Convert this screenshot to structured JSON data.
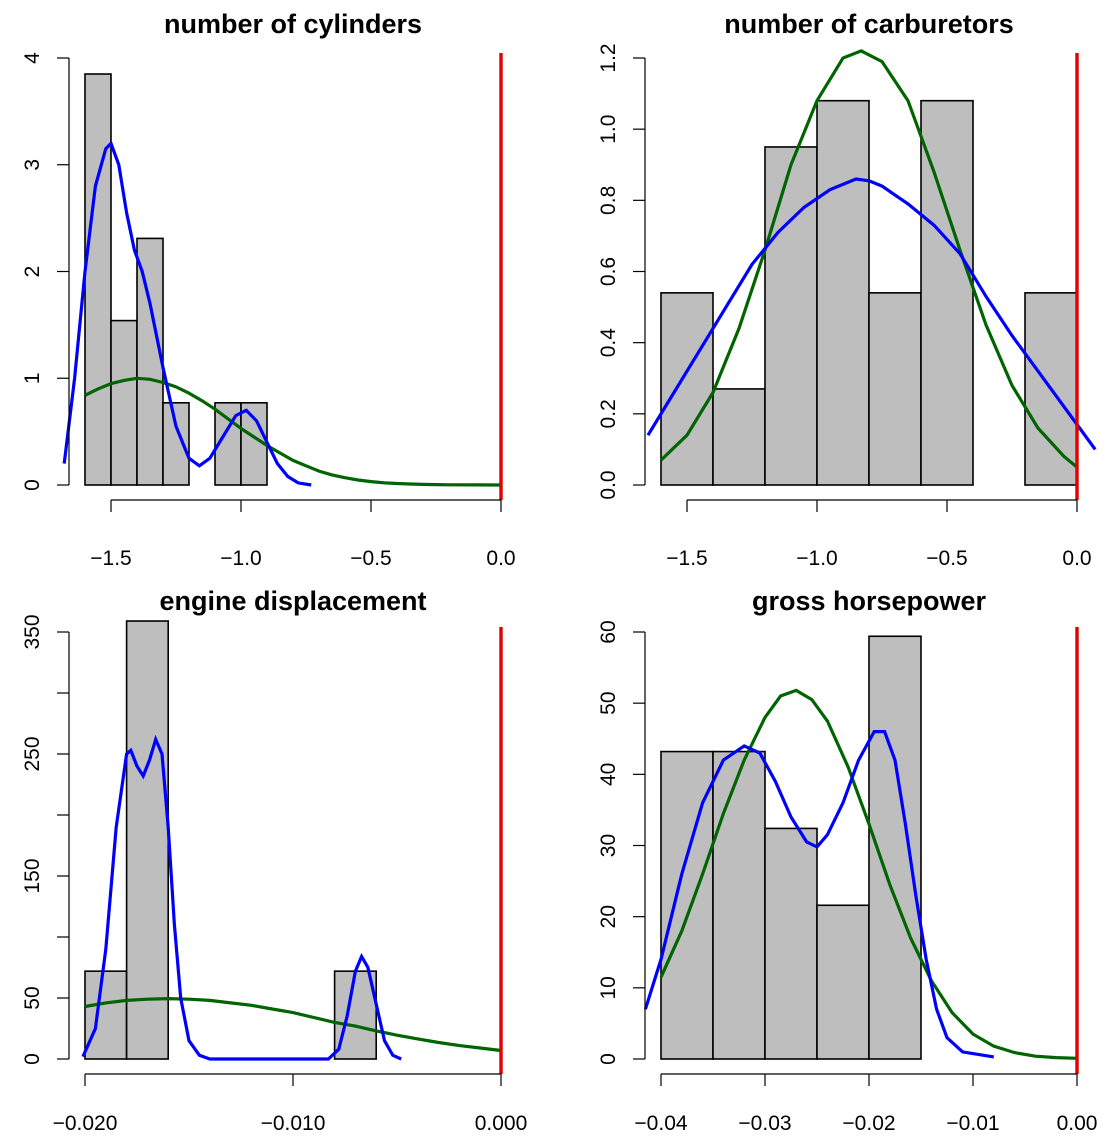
{
  "colors": {
    "bars": "#bebebe",
    "kde": "#0000ff",
    "normal": "#006400",
    "vline": "#e00000"
  },
  "chart_data": [
    {
      "type": "bar",
      "title": "number of cylinders",
      "xlim": [
        -1.6,
        0.0
      ],
      "ylim": [
        0,
        4
      ],
      "xticks": [
        -1.5,
        -1.0,
        -0.5,
        0.0
      ],
      "xtick_labels": [
        "−1.5",
        "−1.0",
        "−0.5",
        "0.0"
      ],
      "yticks": [
        0,
        1,
        2,
        3,
        4
      ],
      "ytick_labels": [
        "0",
        "1",
        "2",
        "3",
        "4"
      ],
      "bins": [
        {
          "x0": -1.6,
          "x1": -1.5,
          "value": 3.85
        },
        {
          "x0": -1.5,
          "x1": -1.4,
          "value": 1.54
        },
        {
          "x0": -1.4,
          "x1": -1.3,
          "value": 2.31
        },
        {
          "x0": -1.3,
          "x1": -1.2,
          "value": 0.77
        },
        {
          "x0": -1.2,
          "x1": -1.1,
          "value": 0
        },
        {
          "x0": -1.1,
          "x1": -1.0,
          "value": 0.77
        },
        {
          "x0": -1.0,
          "x1": -0.9,
          "value": 0.77
        }
      ],
      "kde": [
        [
          -1.68,
          0.2
        ],
        [
          -1.64,
          1.0
        ],
        [
          -1.6,
          2.0
        ],
        [
          -1.56,
          2.8
        ],
        [
          -1.52,
          3.15
        ],
        [
          -1.5,
          3.2
        ],
        [
          -1.47,
          3.0
        ],
        [
          -1.44,
          2.55
        ],
        [
          -1.41,
          2.2
        ],
        [
          -1.38,
          2.0
        ],
        [
          -1.35,
          1.7
        ],
        [
          -1.3,
          1.1
        ],
        [
          -1.25,
          0.55
        ],
        [
          -1.2,
          0.25
        ],
        [
          -1.16,
          0.18
        ],
        [
          -1.12,
          0.25
        ],
        [
          -1.07,
          0.45
        ],
        [
          -1.02,
          0.65
        ],
        [
          -0.98,
          0.7
        ],
        [
          -0.94,
          0.6
        ],
        [
          -0.9,
          0.4
        ],
        [
          -0.86,
          0.2
        ],
        [
          -0.82,
          0.08
        ],
        [
          -0.78,
          0.02
        ],
        [
          -0.73,
          0.0
        ]
      ],
      "normal_curve": [
        [
          -1.6,
          0.84
        ],
        [
          -1.55,
          0.9
        ],
        [
          -1.5,
          0.95
        ],
        [
          -1.45,
          0.98
        ],
        [
          -1.4,
          1.0
        ],
        [
          -1.35,
          0.99
        ],
        [
          -1.3,
          0.96
        ],
        [
          -1.25,
          0.92
        ],
        [
          -1.2,
          0.86
        ],
        [
          -1.15,
          0.79
        ],
        [
          -1.1,
          0.71
        ],
        [
          -1.05,
          0.62
        ],
        [
          -1.0,
          0.53
        ],
        [
          -0.95,
          0.45
        ],
        [
          -0.9,
          0.37
        ],
        [
          -0.85,
          0.3
        ],
        [
          -0.8,
          0.23
        ],
        [
          -0.75,
          0.18
        ],
        [
          -0.7,
          0.13
        ],
        [
          -0.65,
          0.095
        ],
        [
          -0.6,
          0.068
        ],
        [
          -0.55,
          0.047
        ],
        [
          -0.5,
          0.032
        ],
        [
          -0.45,
          0.021
        ],
        [
          -0.4,
          0.014
        ],
        [
          -0.35,
          0.009
        ],
        [
          -0.3,
          0.006
        ],
        [
          -0.25,
          0.004
        ],
        [
          -0.2,
          0.002
        ],
        [
          -0.1,
          0.001
        ],
        [
          0.0,
          0.0
        ]
      ],
      "vline_x": 0.0
    },
    {
      "type": "bar",
      "title": "number of carburetors",
      "xlim": [
        -1.6,
        0.0
      ],
      "ylim": [
        0,
        1.2
      ],
      "xticks": [
        -1.5,
        -1.0,
        -0.5,
        0.0
      ],
      "xtick_labels": [
        "−1.5",
        "−1.0",
        "−0.5",
        "0.0"
      ],
      "yticks": [
        0,
        0.2,
        0.4,
        0.6,
        0.8,
        1.0,
        1.2
      ],
      "ytick_labels": [
        "0.0",
        "0.2",
        "0.4",
        "0.6",
        "0.8",
        "1.0",
        "1.2"
      ],
      "bins": [
        {
          "x0": -1.6,
          "x1": -1.4,
          "value": 0.54
        },
        {
          "x0": -1.4,
          "x1": -1.2,
          "value": 0.27
        },
        {
          "x0": -1.2,
          "x1": -1.0,
          "value": 0.95
        },
        {
          "x0": -1.0,
          "x1": -0.8,
          "value": 1.08
        },
        {
          "x0": -0.8,
          "x1": -0.6,
          "value": 0.54
        },
        {
          "x0": -0.6,
          "x1": -0.4,
          "value": 1.08
        },
        {
          "x0": -0.4,
          "x1": -0.2,
          "value": 0
        },
        {
          "x0": -0.2,
          "x1": 0.0,
          "value": 0.54
        }
      ],
      "kde": [
        [
          -1.65,
          0.14
        ],
        [
          -1.55,
          0.26
        ],
        [
          -1.45,
          0.38
        ],
        [
          -1.35,
          0.5
        ],
        [
          -1.25,
          0.62
        ],
        [
          -1.15,
          0.71
        ],
        [
          -1.05,
          0.78
        ],
        [
          -0.95,
          0.83
        ],
        [
          -0.85,
          0.86
        ],
        [
          -0.8,
          0.855
        ],
        [
          -0.75,
          0.84
        ],
        [
          -0.65,
          0.79
        ],
        [
          -0.55,
          0.73
        ],
        [
          -0.45,
          0.65
        ],
        [
          -0.35,
          0.53
        ],
        [
          -0.25,
          0.42
        ],
        [
          -0.15,
          0.32
        ],
        [
          -0.05,
          0.22
        ],
        [
          0.0,
          0.17
        ],
        [
          0.07,
          0.1
        ]
      ],
      "normal_curve": [
        [
          -1.6,
          0.07
        ],
        [
          -1.5,
          0.14
        ],
        [
          -1.4,
          0.26
        ],
        [
          -1.3,
          0.44
        ],
        [
          -1.2,
          0.66
        ],
        [
          -1.1,
          0.9
        ],
        [
          -1.0,
          1.08
        ],
        [
          -0.9,
          1.2
        ],
        [
          -0.83,
          1.22
        ],
        [
          -0.75,
          1.19
        ],
        [
          -0.65,
          1.08
        ],
        [
          -0.55,
          0.88
        ],
        [
          -0.45,
          0.66
        ],
        [
          -0.35,
          0.45
        ],
        [
          -0.25,
          0.28
        ],
        [
          -0.15,
          0.16
        ],
        [
          -0.05,
          0.08
        ],
        [
          0.0,
          0.05
        ]
      ],
      "vline_x": 0.0
    },
    {
      "type": "bar",
      "title": "engine displacement",
      "xlim": [
        -0.02,
        0.0
      ],
      "ylim": [
        0,
        350
      ],
      "xticks": [
        -0.02,
        -0.01,
        0.0
      ],
      "xtick_labels": [
        "−0.020",
        "−0.010",
        "0.000"
      ],
      "yticks": [
        0,
        50,
        100,
        150,
        200,
        250,
        300,
        350
      ],
      "ytick_labels": [
        "0",
        "50",
        "",
        "150",
        "",
        "250",
        "",
        "350"
      ],
      "bins": [
        {
          "x0": -0.02,
          "x1": -0.018,
          "value": 72
        },
        {
          "x0": -0.018,
          "x1": -0.016,
          "value": 359
        },
        {
          "x0": -0.016,
          "x1": -0.014,
          "value": 0
        },
        {
          "x0": -0.014,
          "x1": -0.012,
          "value": 0
        },
        {
          "x0": -0.012,
          "x1": -0.01,
          "value": 0
        },
        {
          "x0": -0.01,
          "x1": -0.008,
          "value": 0
        },
        {
          "x0": -0.008,
          "x1": -0.006,
          "value": 72
        }
      ],
      "kde": [
        [
          -0.0201,
          2
        ],
        [
          -0.0195,
          25
        ],
        [
          -0.019,
          90
        ],
        [
          -0.0185,
          190
        ],
        [
          -0.018,
          250
        ],
        [
          -0.0178,
          253
        ],
        [
          -0.0175,
          240
        ],
        [
          -0.0172,
          232
        ],
        [
          -0.0169,
          245
        ],
        [
          -0.0166,
          262
        ],
        [
          -0.0163,
          250
        ],
        [
          -0.016,
          190
        ],
        [
          -0.0157,
          110
        ],
        [
          -0.0154,
          50
        ],
        [
          -0.015,
          15
        ],
        [
          -0.0145,
          3
        ],
        [
          -0.014,
          0
        ],
        [
          -0.01,
          0
        ],
        [
          -0.0083,
          0
        ],
        [
          -0.0078,
          8
        ],
        [
          -0.0074,
          35
        ],
        [
          -0.007,
          72
        ],
        [
          -0.0067,
          84
        ],
        [
          -0.0064,
          75
        ],
        [
          -0.006,
          45
        ],
        [
          -0.0056,
          15
        ],
        [
          -0.0052,
          3
        ],
        [
          -0.0048,
          0
        ]
      ],
      "normal_curve": [
        [
          -0.02,
          43
        ],
        [
          -0.019,
          46
        ],
        [
          -0.018,
          48
        ],
        [
          -0.017,
          49
        ],
        [
          -0.016,
          49.5
        ],
        [
          -0.015,
          49
        ],
        [
          -0.014,
          48
        ],
        [
          -0.013,
          46
        ],
        [
          -0.012,
          44
        ],
        [
          -0.011,
          41
        ],
        [
          -0.01,
          38
        ],
        [
          -0.009,
          34
        ],
        [
          -0.008,
          30
        ],
        [
          -0.007,
          27
        ],
        [
          -0.006,
          23
        ],
        [
          -0.005,
          19.5
        ],
        [
          -0.004,
          16.5
        ],
        [
          -0.003,
          13.5
        ],
        [
          -0.002,
          11
        ],
        [
          -0.001,
          9
        ],
        [
          0.0,
          7
        ]
      ],
      "vline_x": 0.0
    },
    {
      "type": "bar",
      "title": "gross horsepower",
      "xlim": [
        -0.04,
        0.0
      ],
      "ylim": [
        0,
        60
      ],
      "xticks": [
        -0.04,
        -0.03,
        -0.02,
        -0.01,
        0.0
      ],
      "xtick_labels": [
        "−0.04",
        "−0.03",
        "−0.02",
        "−0.01",
        "0.00"
      ],
      "yticks": [
        0,
        10,
        20,
        30,
        40,
        50,
        60
      ],
      "ytick_labels": [
        "0",
        "10",
        "20",
        "30",
        "40",
        "50",
        "60"
      ],
      "bins": [
        {
          "x0": -0.04,
          "x1": -0.035,
          "value": 43.2
        },
        {
          "x0": -0.035,
          "x1": -0.03,
          "value": 43.2
        },
        {
          "x0": -0.03,
          "x1": -0.025,
          "value": 32.4
        },
        {
          "x0": -0.025,
          "x1": -0.02,
          "value": 21.6
        },
        {
          "x0": -0.02,
          "x1": -0.015,
          "value": 59.4
        }
      ],
      "kde": [
        [
          -0.0415,
          7
        ],
        [
          -0.04,
          14
        ],
        [
          -0.038,
          26
        ],
        [
          -0.036,
          36
        ],
        [
          -0.034,
          42
        ],
        [
          -0.032,
          44
        ],
        [
          -0.0305,
          43
        ],
        [
          -0.029,
          39
        ],
        [
          -0.0275,
          34
        ],
        [
          -0.026,
          30.5
        ],
        [
          -0.025,
          29.8
        ],
        [
          -0.024,
          31.5
        ],
        [
          -0.0225,
          36
        ],
        [
          -0.021,
          42
        ],
        [
          -0.0195,
          46
        ],
        [
          -0.0185,
          46
        ],
        [
          -0.0175,
          42
        ],
        [
          -0.0165,
          33
        ],
        [
          -0.0155,
          23
        ],
        [
          -0.0145,
          14
        ],
        [
          -0.0135,
          7
        ],
        [
          -0.0125,
          3
        ],
        [
          -0.011,
          1
        ],
        [
          -0.008,
          0.3
        ]
      ],
      "normal_curve": [
        [
          -0.04,
          11.5
        ],
        [
          -0.038,
          18
        ],
        [
          -0.036,
          26
        ],
        [
          -0.034,
          34.5
        ],
        [
          -0.032,
          42
        ],
        [
          -0.03,
          48
        ],
        [
          -0.0285,
          51
        ],
        [
          -0.027,
          51.8
        ],
        [
          -0.0255,
          50.5
        ],
        [
          -0.024,
          47.5
        ],
        [
          -0.022,
          41
        ],
        [
          -0.02,
          33
        ],
        [
          -0.018,
          24.5
        ],
        [
          -0.016,
          17
        ],
        [
          -0.014,
          11
        ],
        [
          -0.012,
          6.5
        ],
        [
          -0.01,
          3.5
        ],
        [
          -0.008,
          1.8
        ],
        [
          -0.006,
          0.9
        ],
        [
          -0.004,
          0.4
        ],
        [
          -0.002,
          0.2
        ],
        [
          0.0,
          0.1
        ]
      ],
      "vline_x": 0.0
    }
  ]
}
